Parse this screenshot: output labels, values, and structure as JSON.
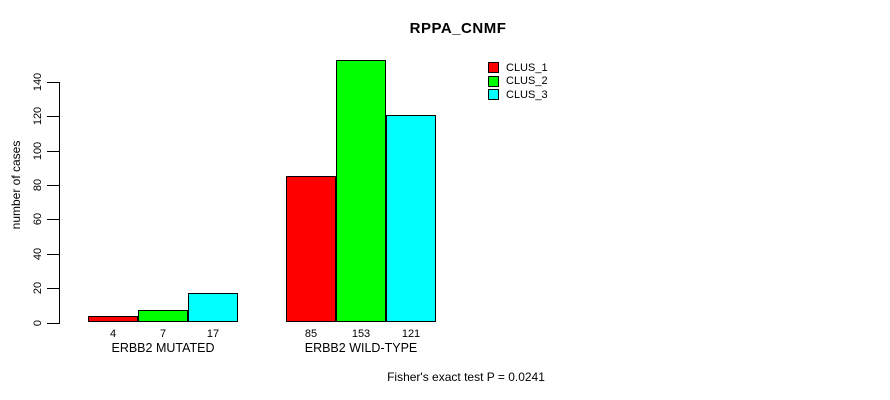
{
  "title": "RPPA_CNMF",
  "annotation": "Fisher's exact test P = 0.0241",
  "colors": {
    "clus_1": "#ff0000",
    "clus_2": "#00ff00",
    "clus_3": "#00ffff",
    "axis": "#000000",
    "background": "#ffffff"
  },
  "chart_data": {
    "type": "bar",
    "title": "RPPA_CNMF",
    "categories": [
      "ERBB2 MUTATED",
      "ERBB2 WILD-TYPE"
    ],
    "series": [
      {
        "name": "CLUS_1",
        "color": "#ff0000",
        "values": [
          4,
          85
        ]
      },
      {
        "name": "CLUS_2",
        "color": "#00ff00",
        "values": [
          7,
          153
        ]
      },
      {
        "name": "CLUS_3",
        "color": "#00ffff",
        "values": [
          17,
          121
        ]
      }
    ],
    "bar_value_labels": [
      [
        4,
        7,
        17
      ],
      [
        85,
        153,
        121
      ]
    ],
    "xlabel": "",
    "ylabel": "number of cases",
    "ylim": [
      0,
      140
    ],
    "yticks": [
      0,
      20,
      40,
      60,
      80,
      100,
      120,
      140
    ],
    "grid": false,
    "legend_position": "top-right",
    "annotation": "Fisher's exact test P = 0.0241"
  }
}
